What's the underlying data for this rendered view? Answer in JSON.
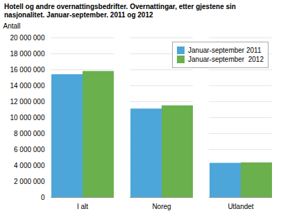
{
  "chart_data": {
    "type": "bar",
    "title": "Hotell og andre overnattingsbedrifter. Overnattingar, etter gjestene sin\nnasjonalitet. Januar-september. 2011 og 2012",
    "y_label": "Antall",
    "categories": [
      "I alt",
      "Noreg",
      "Utlandet"
    ],
    "series": [
      {
        "name": "Januar-september 2011",
        "color": "#4da6d9",
        "values": [
          15400000,
          11100000,
          4300000
        ]
      },
      {
        "name": "Januar-september  2012",
        "color": "#6ab04c",
        "values": [
          15800000,
          11500000,
          4350000
        ]
      }
    ],
    "ylim": [
      0,
      20000000
    ],
    "yticks": [
      0,
      {
        "value": 2000000,
        "label": "2 000 000"
      },
      {
        "value": 4000000,
        "label": "4 000 000"
      },
      {
        "value": 6000000,
        "label": "6 000 000"
      },
      {
        "value": 8000000,
        "label": "8 000 000"
      },
      {
        "value": 10000000,
        "label": "10 000 000"
      },
      {
        "value": 12000000,
        "label": "12 000 000"
      },
      {
        "value": 14000000,
        "label": "14 000 000"
      },
      {
        "value": 16000000,
        "label": "16 000 000"
      },
      {
        "value": 18000000,
        "label": "18 000 000"
      },
      {
        "value": 20000000,
        "label": "20 000 000"
      }
    ],
    "grid": true,
    "legend": "upper right"
  }
}
